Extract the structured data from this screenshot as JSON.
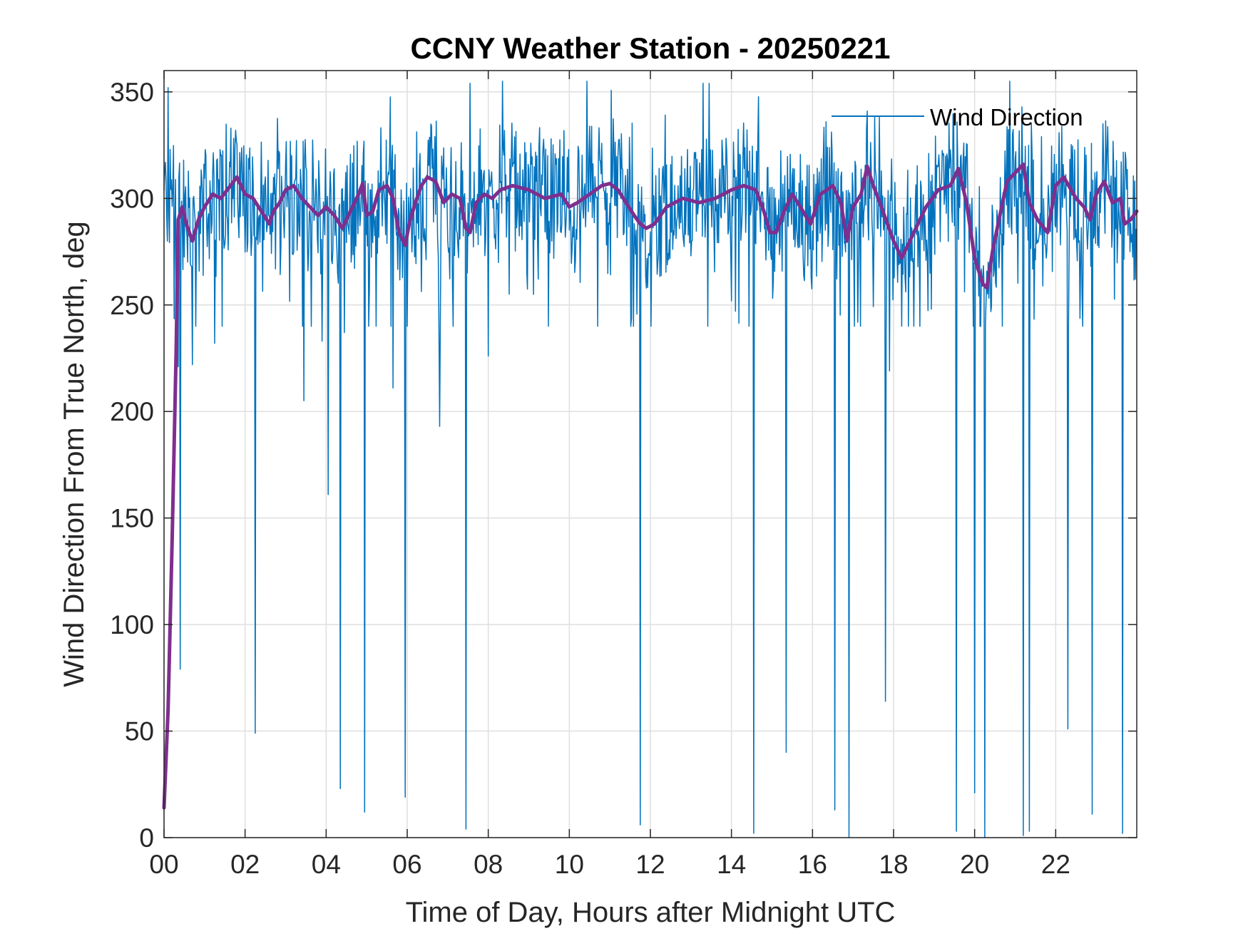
{
  "colors": {
    "raw": "#0072BD",
    "smooth": "#7E2F8E",
    "axis": "#262626",
    "grid": "#dfdfdf"
  },
  "chart_data": {
    "type": "line",
    "title": "CCNY Weather Station - 20250221",
    "xlabel": "Time of Day, Hours after Midnight UTC",
    "ylabel": "Wind Direction From True North, deg",
    "xlim": [
      0,
      24
    ],
    "ylim": [
      0,
      360
    ],
    "xticks": [
      0,
      2,
      4,
      6,
      8,
      10,
      12,
      14,
      16,
      18,
      20,
      22
    ],
    "xtick_labels": [
      "00",
      "02",
      "04",
      "06",
      "08",
      "10",
      "12",
      "14",
      "16",
      "18",
      "20",
      "22"
    ],
    "yticks": [
      0,
      50,
      100,
      150,
      200,
      250,
      300,
      350
    ],
    "ytick_labels": [
      "0",
      "50",
      "100",
      "150",
      "200",
      "250",
      "300",
      "350"
    ],
    "grid": true,
    "legend": {
      "position": "top-right",
      "entries": [
        "Wind Direction"
      ]
    },
    "series": [
      {
        "name": "Wind Direction",
        "note": "raw 1-minute wind direction (noisy), oscillating ~250-350 with occasional spikes toward 0",
        "base_band": [
          270,
          335
        ],
        "spikes": [
          [
            0.1,
            352
          ],
          [
            0.35,
            221
          ],
          [
            0.4,
            79
          ],
          [
            0.7,
            222
          ],
          [
            1.25,
            232
          ],
          [
            2.25,
            49
          ],
          [
            3.45,
            205
          ],
          [
            3.9,
            233
          ],
          [
            4.05,
            161
          ],
          [
            4.35,
            23
          ],
          [
            4.45,
            237
          ],
          [
            4.95,
            12
          ],
          [
            5.65,
            211
          ],
          [
            5.95,
            19
          ],
          [
            6.8,
            193
          ],
          [
            7.45,
            4
          ],
          [
            7.55,
            354
          ],
          [
            8.0,
            226
          ],
          [
            11.75,
            6
          ],
          [
            13.3,
            354
          ],
          [
            13.45,
            354
          ],
          [
            14.55,
            2
          ],
          [
            15.35,
            40
          ],
          [
            16.55,
            13
          ],
          [
            16.9,
            0
          ],
          [
            17.8,
            64
          ],
          [
            17.9,
            219
          ],
          [
            19.55,
            3
          ],
          [
            20.0,
            21
          ],
          [
            20.25,
            0
          ],
          [
            21.2,
            1
          ],
          [
            21.35,
            3
          ],
          [
            22.3,
            51
          ],
          [
            22.9,
            11
          ],
          [
            23.65,
            2
          ]
        ]
      },
      {
        "name": "",
        "note": "smoothed wind direction (moving average)",
        "x": [
          0.0,
          0.1,
          0.2,
          0.3,
          0.35,
          0.45,
          0.55,
          0.7,
          0.85,
          1.0,
          1.2,
          1.4,
          1.6,
          1.8,
          2.0,
          2.2,
          2.4,
          2.6,
          2.7,
          2.85,
          3.0,
          3.2,
          3.4,
          3.6,
          3.8,
          4.0,
          4.2,
          4.4,
          4.6,
          4.8,
          4.9,
          5.0,
          5.15,
          5.3,
          5.5,
          5.65,
          5.8,
          5.95,
          6.05,
          6.2,
          6.35,
          6.5,
          6.7,
          6.9,
          7.1,
          7.3,
          7.45,
          7.55,
          7.7,
          7.9,
          8.1,
          8.3,
          8.6,
          9.0,
          9.4,
          9.8,
          10.0,
          10.2,
          10.5,
          10.8,
          11.0,
          11.2,
          11.4,
          11.6,
          11.75,
          11.9,
          12.1,
          12.4,
          12.8,
          13.2,
          13.6,
          14.0,
          14.3,
          14.6,
          14.8,
          14.95,
          15.1,
          15.3,
          15.5,
          15.7,
          15.95,
          16.2,
          16.5,
          16.7,
          16.85,
          17.0,
          17.2,
          17.35,
          17.5,
          17.7,
          18.0,
          18.2,
          18.5,
          18.8,
          19.1,
          19.4,
          19.6,
          19.8,
          20.0,
          20.2,
          20.3,
          20.45,
          20.6,
          20.8,
          21.0,
          21.2,
          21.35,
          21.55,
          21.8,
          22.0,
          22.2,
          22.5,
          22.7,
          22.85,
          23.0,
          23.2,
          23.4,
          23.6,
          23.7,
          23.85,
          24.0
        ],
        "y": [
          14,
          60,
          140,
          230,
          290,
          296,
          288,
          280,
          290,
          296,
          302,
          300,
          305,
          310,
          302,
          300,
          294,
          288,
          294,
          298,
          304,
          306,
          300,
          296,
          292,
          296,
          292,
          286,
          294,
          302,
          307,
          292,
          294,
          304,
          306,
          300,
          284,
          278,
          288,
          298,
          306,
          310,
          308,
          298,
          302,
          300,
          286,
          284,
          298,
          302,
          300,
          304,
          306,
          304,
          300,
          302,
          296,
          298,
          302,
          306,
          307,
          304,
          298,
          292,
          288,
          286,
          288,
          296,
          300,
          298,
          300,
          304,
          306,
          304,
          294,
          284,
          284,
          294,
          302,
          296,
          288,
          302,
          306,
          298,
          280,
          296,
          302,
          315,
          306,
          296,
          280,
          272,
          284,
          296,
          304,
          306,
          314,
          298,
          272,
          260,
          258,
          276,
          290,
          308,
          312,
          316,
          298,
          290,
          284,
          306,
          310,
          300,
          296,
          290,
          302,
          308,
          298,
          300,
          288,
          290,
          294
        ]
      }
    ]
  }
}
